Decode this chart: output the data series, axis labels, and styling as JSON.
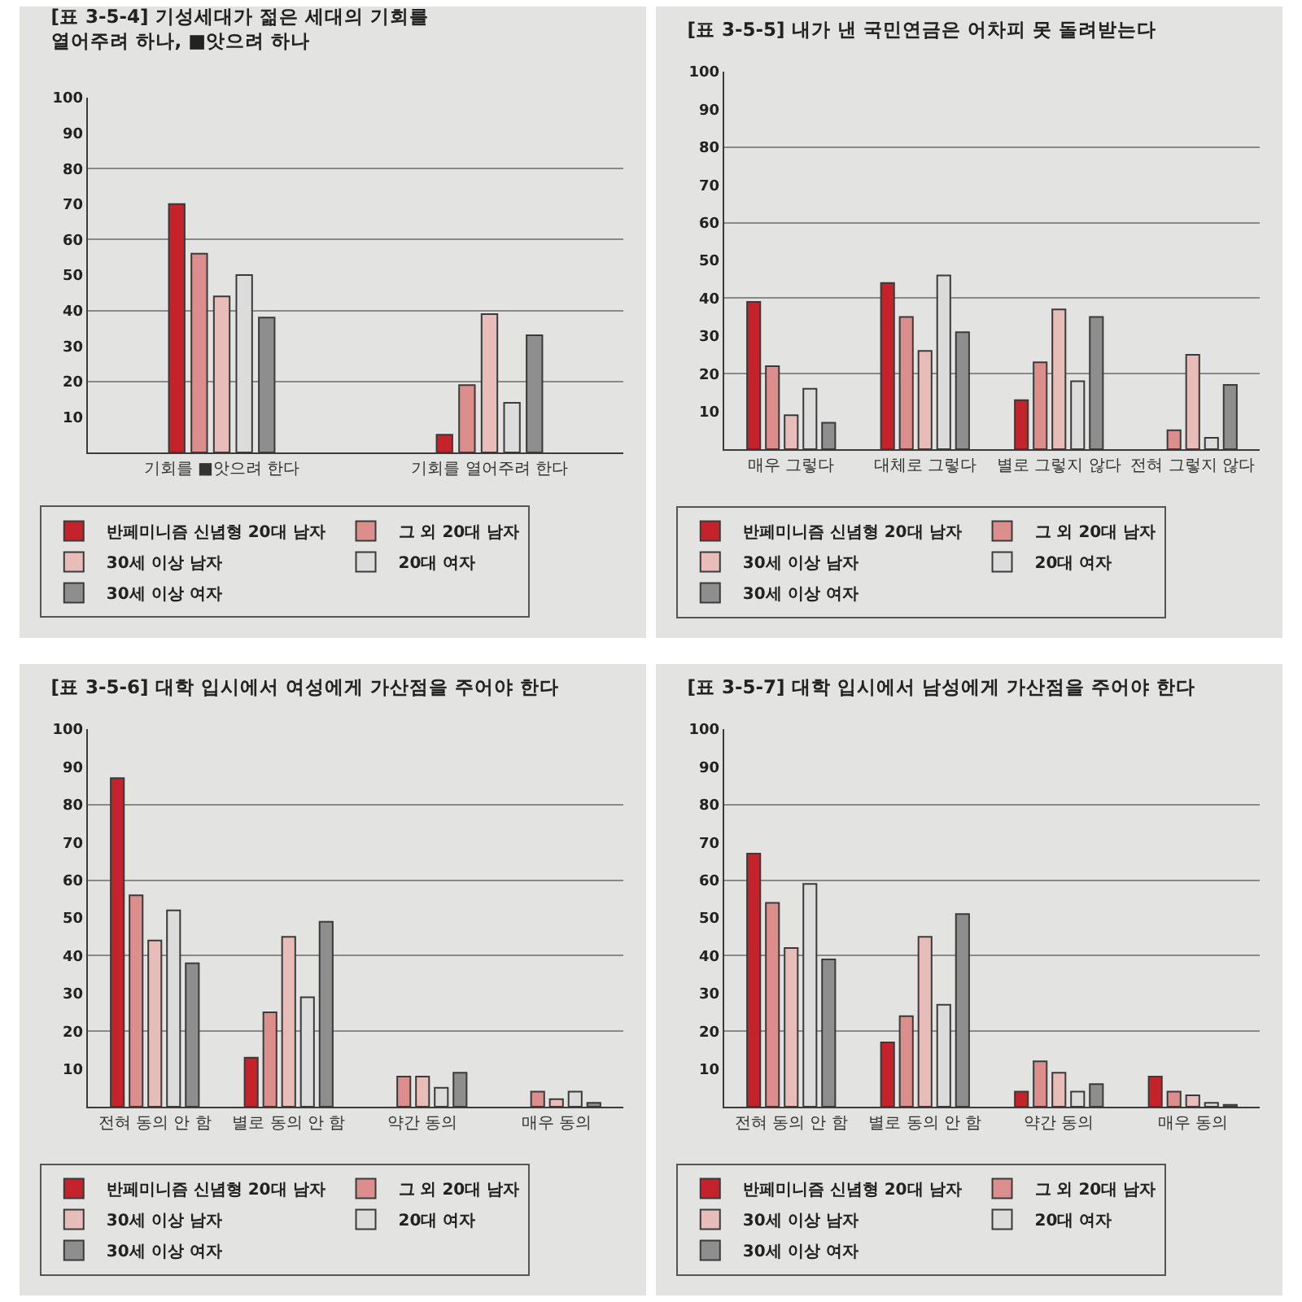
{
  "chart_data": [
    {
      "type": "bar",
      "title": "[표 3-5-4] 기성세대가 젊은 세대의 기회를\n열어주려 하나, ■앗으려 하나",
      "categories": [
        "기회를 ■앗으려 한다",
        "기회를 열어주려 한다"
      ],
      "series": [
        {
          "name": "반페미니즘 신념형 20대 남자",
          "color": "#c4232b",
          "values": [
            70,
            5
          ]
        },
        {
          "name": "그 외 20대 남자",
          "color": "#dc8e8c",
          "values": [
            56,
            19
          ]
        },
        {
          "name": "30세 이상 남자",
          "color": "#e8bcb9",
          "values": [
            44,
            39
          ]
        },
        {
          "name": "20대 여자",
          "color": "#dcdcdc",
          "values": [
            50,
            14
          ]
        },
        {
          "name": "30세 이상 여자",
          "color": "#8e8e8e",
          "values": [
            38,
            33
          ]
        }
      ],
      "ylim": [
        0,
        100
      ],
      "yticks": [
        10,
        20,
        30,
        40,
        50,
        60,
        70,
        80,
        90,
        100
      ],
      "grid": "y",
      "legend": "bottom"
    },
    {
      "type": "bar",
      "title": "[표 3-5-5] 내가 낸 국민연금은 어차피 못 돌려받는다",
      "categories": [
        "매우 그렇다",
        "대체로 그렇다",
        "별로 그렇지 않다",
        "전혀 그렇지 않다"
      ],
      "series": [
        {
          "name": "반페미니즘 신념형 20대 남자",
          "color": "#c4232b",
          "values": [
            39,
            44,
            13,
            null
          ]
        },
        {
          "name": "그 외 20대 남자",
          "color": "#dc8e8c",
          "values": [
            22,
            35,
            23,
            5
          ]
        },
        {
          "name": "30세 이상 남자",
          "color": "#e8bcb9",
          "values": [
            9,
            26,
            37,
            25
          ]
        },
        {
          "name": "20대 여자",
          "color": "#dcdcdc",
          "values": [
            16,
            46,
            18,
            3
          ]
        },
        {
          "name": "30세 이상 여자",
          "color": "#8e8e8e",
          "values": [
            7,
            31,
            35,
            17
          ]
        }
      ],
      "ylim": [
        0,
        100
      ],
      "yticks": [
        10,
        20,
        30,
        40,
        50,
        60,
        70,
        80,
        90,
        100
      ],
      "grid": "y",
      "legend": "bottom"
    },
    {
      "type": "bar",
      "title": "[표 3-5-6] 대학 입시에서 여성에게 가산점을 주어야 한다",
      "categories": [
        "전혀 동의 안 함",
        "별로 동의 안 함",
        "약간 동의",
        "매우 동의"
      ],
      "series": [
        {
          "name": "반페미니즘 신념형 20대 남자",
          "color": "#c4232b",
          "values": [
            87,
            13,
            null,
            null
          ]
        },
        {
          "name": "그 외 20대 남자",
          "color": "#dc8e8c",
          "values": [
            56,
            25,
            8,
            4
          ]
        },
        {
          "name": "30세 이상 남자",
          "color": "#e8bcb9",
          "values": [
            44,
            45,
            8,
            2
          ]
        },
        {
          "name": "20대 여자",
          "color": "#dcdcdc",
          "values": [
            52,
            29,
            5,
            4
          ]
        },
        {
          "name": "30세 이상 여자",
          "color": "#8e8e8e",
          "values": [
            38,
            49,
            9,
            1
          ]
        }
      ],
      "ylim": [
        0,
        100
      ],
      "yticks": [
        10,
        20,
        30,
        40,
        50,
        60,
        70,
        80,
        90,
        100
      ],
      "grid": "y",
      "legend": "bottom"
    },
    {
      "type": "bar",
      "title": "[표 3-5-7] 대학 입시에서 남성에게 가산점을 주어야 한다",
      "categories": [
        "전혀 동의 안 함",
        "별로 동의 안 함",
        "약간 동의",
        "매우 동의"
      ],
      "series": [
        {
          "name": "반페미니즘 신념형 20대 남자",
          "color": "#c4232b",
          "values": [
            67,
            17,
            4,
            8
          ]
        },
        {
          "name": "그 외 20대 남자",
          "color": "#dc8e8c",
          "values": [
            54,
            24,
            12,
            4
          ]
        },
        {
          "name": "30세 이상 남자",
          "color": "#e8bcb9",
          "values": [
            42,
            45,
            9,
            3
          ]
        },
        {
          "name": "20대 여자",
          "color": "#dcdcdc",
          "values": [
            59,
            27,
            4,
            1
          ]
        },
        {
          "name": "30세 이상 여자",
          "color": "#8e8e8e",
          "values": [
            39,
            51,
            6,
            0.5
          ]
        }
      ],
      "ylim": [
        0,
        100
      ],
      "yticks": [
        10,
        20,
        30,
        40,
        50,
        60,
        70,
        80,
        90,
        100
      ],
      "grid": "y",
      "legend": "bottom"
    }
  ]
}
